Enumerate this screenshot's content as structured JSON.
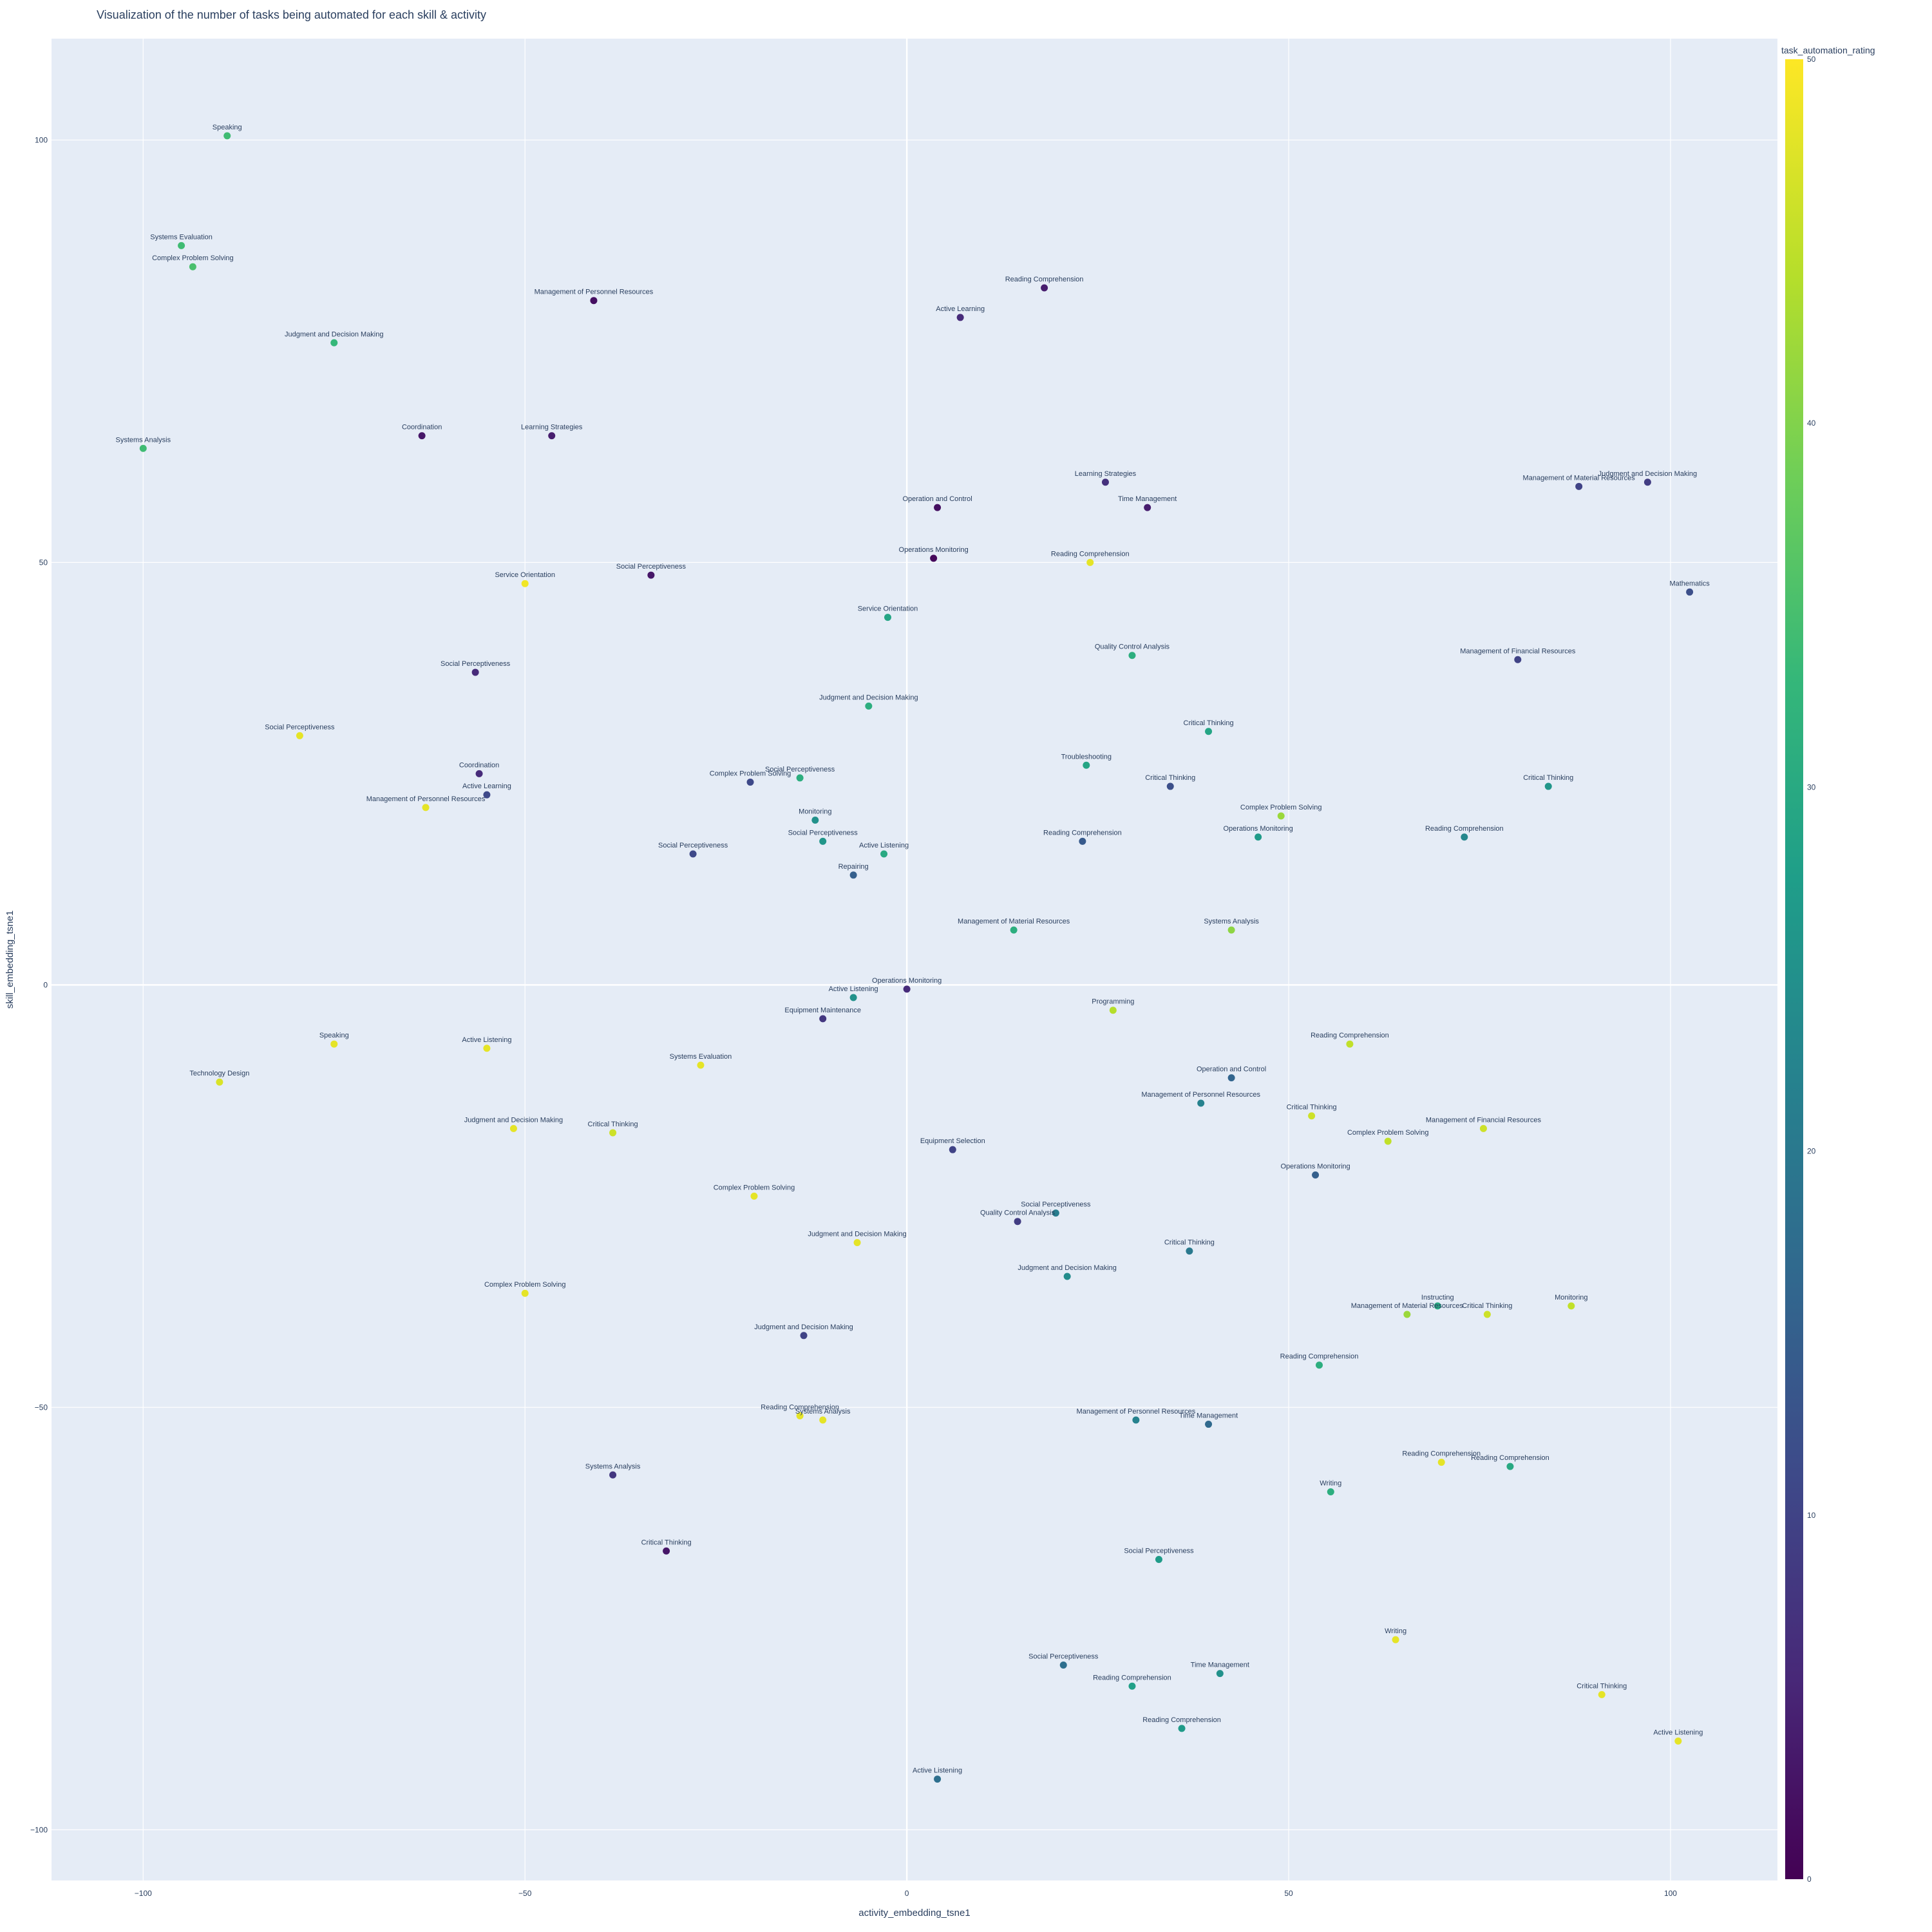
{
  "chart_data": {
    "type": "scatter",
    "title": "Visualization of the number of tasks being automated for each skill & activity",
    "xlabel": "activity_embedding_tsne1",
    "ylabel": "skill_embedding_tsne1",
    "xlim": [
      -112,
      114
    ],
    "ylim": [
      -106,
      112
    ],
    "x_ticks": [
      -100,
      -50,
      0,
      50,
      100
    ],
    "y_ticks": [
      -100,
      -50,
      0,
      50,
      100
    ],
    "x_tick_labels": [
      "−100",
      "−50",
      "0",
      "50",
      "100"
    ],
    "y_tick_labels": [
      "−100",
      "−50",
      "0",
      "50",
      "100"
    ],
    "grid": true,
    "colorscale": "Viridis",
    "colorbar": {
      "title": "task_automation_rating",
      "range": [
        0,
        50
      ],
      "ticks": [
        0,
        10,
        20,
        30,
        40,
        50
      ],
      "tick_labels": [
        "0",
        "10",
        "20",
        "30",
        "40",
        "50"
      ]
    },
    "points": [
      {
        "x": -89,
        "y": 100.5,
        "label": "Speaking",
        "value": 34
      },
      {
        "x": -95,
        "y": 87.5,
        "label": "Systems Evaluation",
        "value": 34
      },
      {
        "x": -93.5,
        "y": 85,
        "label": "Complex Problem Solving",
        "value": 35
      },
      {
        "x": -75,
        "y": 76,
        "label": "Judgment and Decision Making",
        "value": 33
      },
      {
        "x": -100,
        "y": 63.5,
        "label": "Systems Analysis",
        "value": 34
      },
      {
        "x": -41,
        "y": 81,
        "label": "Management of Personnel Resources",
        "value": 2
      },
      {
        "x": 18,
        "y": 82.5,
        "label": "Reading Comprehension",
        "value": 4
      },
      {
        "x": 7,
        "y": 79,
        "label": "Active Learning",
        "value": 6
      },
      {
        "x": -63.5,
        "y": 65,
        "label": "Coordination",
        "value": 3
      },
      {
        "x": -46.5,
        "y": 65,
        "label": "Learning Strategies",
        "value": 4
      },
      {
        "x": 26,
        "y": 59.5,
        "label": "Learning Strategies",
        "value": 7
      },
      {
        "x": 4,
        "y": 56.5,
        "label": "Operation and Control",
        "value": 2
      },
      {
        "x": 31.5,
        "y": 56.5,
        "label": "Time Management",
        "value": 4
      },
      {
        "x": 88,
        "y": 59,
        "label": "Management of Material Resources",
        "value": 10
      },
      {
        "x": 97,
        "y": 59.5,
        "label": "Judgment and Decision Making",
        "value": 9
      },
      {
        "x": 3.5,
        "y": 50.5,
        "label": "Operations Monitoring",
        "value": 1
      },
      {
        "x": 24,
        "y": 50,
        "label": "Reading Comprehension",
        "value": 48
      },
      {
        "x": -50,
        "y": 47.5,
        "label": "Service Orientation",
        "value": 49
      },
      {
        "x": -33.5,
        "y": 48.5,
        "label": "Social Perceptiveness",
        "value": 3
      },
      {
        "x": -2.5,
        "y": 43.5,
        "label": "Service Orientation",
        "value": 29
      },
      {
        "x": 102.5,
        "y": 46.5,
        "label": "Mathematics",
        "value": 12
      },
      {
        "x": 29.5,
        "y": 39,
        "label": "Quality Control Analysis",
        "value": 31
      },
      {
        "x": 80,
        "y": 38.5,
        "label": "Management of Financial Resources",
        "value": 10
      },
      {
        "x": -56.5,
        "y": 37,
        "label": "Social Perceptiveness",
        "value": 6
      },
      {
        "x": -5,
        "y": 33,
        "label": "Judgment and Decision Making",
        "value": 31
      },
      {
        "x": -79.5,
        "y": 29.5,
        "label": "Social Perceptiveness",
        "value": 48
      },
      {
        "x": 39.5,
        "y": 30,
        "label": "Critical Thinking",
        "value": 29
      },
      {
        "x": 23.5,
        "y": 26,
        "label": "Troubleshooting",
        "value": 29
      },
      {
        "x": -56,
        "y": 25,
        "label": "Coordination",
        "value": 6
      },
      {
        "x": -20.5,
        "y": 24,
        "label": "Complex Problem Solving",
        "value": 11
      },
      {
        "x": -14,
        "y": 24.5,
        "label": "Social Perceptiveness",
        "value": 31
      },
      {
        "x": 34.5,
        "y": 23.5,
        "label": "Critical Thinking",
        "value": 12
      },
      {
        "x": 84,
        "y": 23.5,
        "label": "Critical Thinking",
        "value": 26
      },
      {
        "x": -55,
        "y": 22.5,
        "label": "Active Learning",
        "value": 11
      },
      {
        "x": -63,
        "y": 21,
        "label": "Management of Personnel Resources",
        "value": 48
      },
      {
        "x": 49,
        "y": 20,
        "label": "Complex Problem Solving",
        "value": 42
      },
      {
        "x": -12,
        "y": 19.5,
        "label": "Monitoring",
        "value": 25
      },
      {
        "x": 46,
        "y": 17.5,
        "label": "Operations Monitoring",
        "value": 27
      },
      {
        "x": 73,
        "y": 17.5,
        "label": "Reading Comprehension",
        "value": 23
      },
      {
        "x": -11,
        "y": 17,
        "label": "Social Perceptiveness",
        "value": 26
      },
      {
        "x": 23,
        "y": 17,
        "label": "Reading Comprehension",
        "value": 14
      },
      {
        "x": -28,
        "y": 15.5,
        "label": "Social Perceptiveness",
        "value": 11
      },
      {
        "x": -3,
        "y": 15.5,
        "label": "Active Listening",
        "value": 30
      },
      {
        "x": -7,
        "y": 13,
        "label": "Repairing",
        "value": 15
      },
      {
        "x": 14,
        "y": 6.5,
        "label": "Management of Material Resources",
        "value": 31
      },
      {
        "x": 42.5,
        "y": 6.5,
        "label": "Systems Analysis",
        "value": 41
      },
      {
        "x": 0,
        "y": -0.5,
        "label": "Operations Monitoring",
        "value": 6
      },
      {
        "x": -7,
        "y": -1.5,
        "label": "Active Listening",
        "value": 25
      },
      {
        "x": -11,
        "y": -4,
        "label": "Equipment Maintenance",
        "value": 8
      },
      {
        "x": 27,
        "y": -3,
        "label": "Programming",
        "value": 44
      },
      {
        "x": -75,
        "y": -7,
        "label": "Speaking",
        "value": 48
      },
      {
        "x": -55,
        "y": -7.5,
        "label": "Active Listening",
        "value": 48
      },
      {
        "x": 58,
        "y": -7,
        "label": "Reading Comprehension",
        "value": 45
      },
      {
        "x": -27,
        "y": -9.5,
        "label": "Systems Evaluation",
        "value": 48
      },
      {
        "x": 42.5,
        "y": -11,
        "label": "Operation and Control",
        "value": 16
      },
      {
        "x": -90,
        "y": -11.5,
        "label": "Technology Design",
        "value": 47
      },
      {
        "x": 38.5,
        "y": -14,
        "label": "Management of Personnel Resources",
        "value": 22
      },
      {
        "x": 53,
        "y": -15.5,
        "label": "Critical Thinking",
        "value": 46
      },
      {
        "x": -51.5,
        "y": -17,
        "label": "Judgment and Decision Making",
        "value": 48
      },
      {
        "x": -38.5,
        "y": -17.5,
        "label": "Critical Thinking",
        "value": 46
      },
      {
        "x": 75.5,
        "y": -17,
        "label": "Management of Financial Resources",
        "value": 46
      },
      {
        "x": 63,
        "y": -18.5,
        "label": "Complex Problem Solving",
        "value": 45
      },
      {
        "x": 6,
        "y": -19.5,
        "label": "Equipment Selection",
        "value": 10
      },
      {
        "x": 53.5,
        "y": -22.5,
        "label": "Operations Monitoring",
        "value": 15
      },
      {
        "x": -20,
        "y": -25,
        "label": "Complex Problem Solving",
        "value": 48
      },
      {
        "x": 19.5,
        "y": -27,
        "label": "Social Perceptiveness",
        "value": 21
      },
      {
        "x": 14.5,
        "y": -28,
        "label": "Quality Control Analysis",
        "value": 9
      },
      {
        "x": -6.5,
        "y": -30.5,
        "label": "Judgment and Decision Making",
        "value": 48
      },
      {
        "x": 37,
        "y": -31.5,
        "label": "Critical Thinking",
        "value": 20
      },
      {
        "x": 21,
        "y": -34.5,
        "label": "Judgment and Decision Making",
        "value": 24
      },
      {
        "x": -50,
        "y": -36.5,
        "label": "Complex Problem Solving",
        "value": 48
      },
      {
        "x": 65.5,
        "y": -39,
        "label": "Management of Material Resources",
        "value": 42
      },
      {
        "x": 69.5,
        "y": -38,
        "label": "Instructing",
        "value": 30
      },
      {
        "x": 76,
        "y": -39,
        "label": "Critical Thinking",
        "value": 46
      },
      {
        "x": 87,
        "y": -38,
        "label": "Monitoring",
        "value": 45
      },
      {
        "x": -13.5,
        "y": -41.5,
        "label": "Judgment and Decision Making",
        "value": 10
      },
      {
        "x": 54,
        "y": -45,
        "label": "Reading Comprehension",
        "value": 31
      },
      {
        "x": -14,
        "y": -51,
        "label": "Reading Comprehension",
        "value": 48
      },
      {
        "x": -11,
        "y": -51.5,
        "label": "Systems Analysis",
        "value": 48
      },
      {
        "x": 30,
        "y": -51.5,
        "label": "Management of Personnel Resources",
        "value": 22
      },
      {
        "x": 39.5,
        "y": -52,
        "label": "Time Management",
        "value": 17
      },
      {
        "x": 70,
        "y": -56.5,
        "label": "Reading Comprehension",
        "value": 48
      },
      {
        "x": 79,
        "y": -57,
        "label": "Reading Comprehension",
        "value": 30
      },
      {
        "x": -38.5,
        "y": -58,
        "label": "Systems Analysis",
        "value": 8
      },
      {
        "x": 55.5,
        "y": -60,
        "label": "Writing",
        "value": 31
      },
      {
        "x": -31.5,
        "y": -67,
        "label": "Critical Thinking",
        "value": 3
      },
      {
        "x": 33,
        "y": -68,
        "label": "Social Perceptiveness",
        "value": 27
      },
      {
        "x": 64,
        "y": -77.5,
        "label": "Writing",
        "value": 48
      },
      {
        "x": 20.5,
        "y": -80.5,
        "label": "Social Perceptiveness",
        "value": 18
      },
      {
        "x": 41,
        "y": -81.5,
        "label": "Time Management",
        "value": 25
      },
      {
        "x": 29.5,
        "y": -83,
        "label": "Reading Comprehension",
        "value": 28
      },
      {
        "x": 91,
        "y": -84,
        "label": "Critical Thinking",
        "value": 48
      },
      {
        "x": 36,
        "y": -88,
        "label": "Reading Comprehension",
        "value": 27
      },
      {
        "x": 101,
        "y": -89.5,
        "label": "Active Listening",
        "value": 48
      },
      {
        "x": 4,
        "y": -94,
        "label": "Active Listening",
        "value": 18
      }
    ]
  }
}
